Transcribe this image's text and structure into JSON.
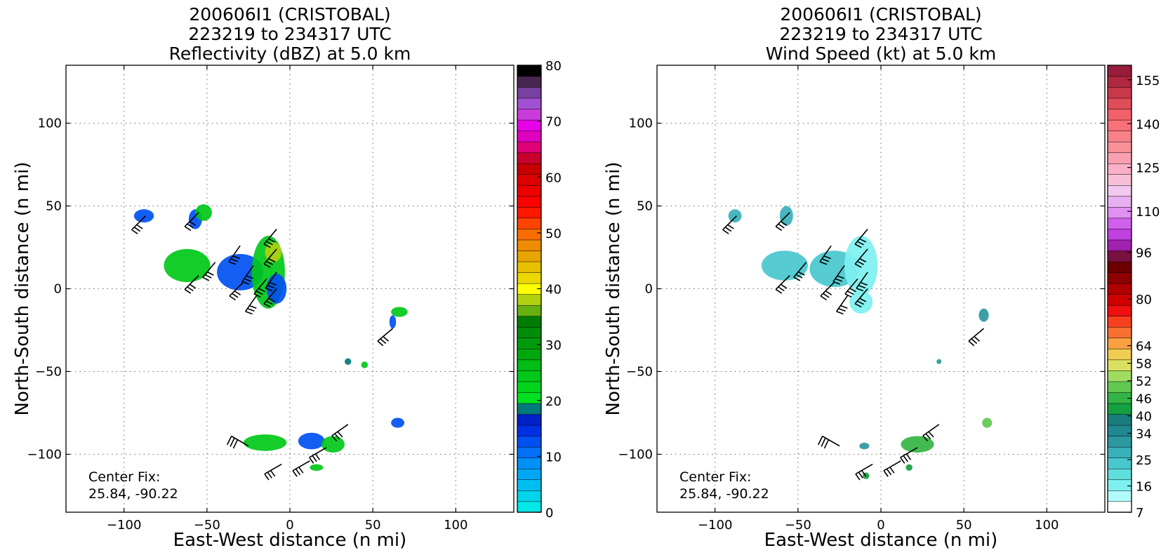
{
  "chart_data": [
    {
      "type": "heatmap",
      "title": [
        "200606I1 (CRISTOBAL)",
        "223219 to 234317 UTC",
        "Reflectivity (dBZ) at 5.0 km"
      ],
      "xlabel": "East-West distance (n mi)",
      "ylabel": "North-South distance (n mi)",
      "xlim": [
        -135,
        135
      ],
      "ylim": [
        -135,
        135
      ],
      "xticks": [
        -100,
        -50,
        0,
        50,
        100
      ],
      "xtick_labels": [
        "−100",
        "−50",
        "0",
        "50",
        "100"
      ],
      "yticks": [
        -100,
        -50,
        0,
        50,
        100
      ],
      "ytick_labels": [
        "−100",
        "−50",
        "0",
        "50",
        "100"
      ],
      "grid": true,
      "annotation": [
        "Center Fix:",
        "25.84, -90.22"
      ],
      "colorbar": {
        "min": 0,
        "max": 80,
        "ticks": [
          0,
          10,
          20,
          30,
          40,
          50,
          60,
          70,
          80
        ],
        "tick_labels": [
          "0",
          "10",
          "20",
          "30",
          "40",
          "50",
          "60",
          "70",
          "80"
        ],
        "colors": [
          "#00e8e8",
          "#00d4ea",
          "#00bff0",
          "#00a8f4",
          "#0090f6",
          "#0070f6",
          "#0050f2",
          "#0030e6",
          "#0020c8",
          "#007a7a",
          "#00e020",
          "#00d41c",
          "#00c818",
          "#00bc14",
          "#00a810",
          "#009a0c",
          "#008c08",
          "#007c04",
          "#66b010",
          "#b0d010",
          "#ffff00",
          "#ecd800",
          "#e8c000",
          "#e8a400",
          "#f08c00",
          "#f86c00",
          "#ff4400",
          "#ff1800",
          "#ff0000",
          "#ee0000",
          "#dc0000",
          "#c80000",
          "#c8002c",
          "#e00078",
          "#e000c0",
          "#e800e8",
          "#c83cdc",
          "#a050d0",
          "#7840a0",
          "#482850",
          "#000000"
        ]
      },
      "fields": [
        {
          "x": -62,
          "y": 14,
          "rx": 14,
          "ry": 10,
          "color": "#00c818"
        },
        {
          "x": -30,
          "y": 10,
          "rx": 14,
          "ry": 11,
          "color": "#0050f2"
        },
        {
          "x": -13,
          "y": 10,
          "rx": 10,
          "ry": 22,
          "color": "#00c818"
        },
        {
          "x": -10,
          "y": 22,
          "rx": 5,
          "ry": 6,
          "color": "#b0d010"
        },
        {
          "x": -8,
          "y": 0,
          "rx": 6,
          "ry": 9,
          "color": "#0050f2"
        },
        {
          "x": -57,
          "y": 42,
          "rx": 4,
          "ry": 6,
          "color": "#0050f2"
        },
        {
          "x": -52,
          "y": 46,
          "rx": 5,
          "ry": 5,
          "color": "#00c818"
        },
        {
          "x": -88,
          "y": 44,
          "rx": 6,
          "ry": 4,
          "color": "#0050f2"
        },
        {
          "x": 66,
          "y": -14,
          "rx": 5,
          "ry": 3,
          "color": "#00c818"
        },
        {
          "x": 62,
          "y": -20,
          "rx": 2,
          "ry": 4,
          "color": "#0050f2"
        },
        {
          "x": 65,
          "y": -81,
          "rx": 4,
          "ry": 3,
          "color": "#0050f2"
        },
        {
          "x": -15,
          "y": -93,
          "rx": 13,
          "ry": 5,
          "color": "#00c818"
        },
        {
          "x": 13,
          "y": -92,
          "rx": 8,
          "ry": 5,
          "color": "#0050f2"
        },
        {
          "x": 26,
          "y": -94,
          "rx": 7,
          "ry": 5,
          "color": "#00c818"
        },
        {
          "x": 16,
          "y": -108,
          "rx": 4,
          "ry": 2,
          "color": "#00c818"
        },
        {
          "x": 45,
          "y": -46,
          "rx": 2,
          "ry": 2,
          "color": "#00c818"
        },
        {
          "x": 35,
          "y": -44,
          "rx": 2,
          "ry": 2,
          "color": "#007a7a"
        }
      ]
    },
    {
      "type": "heatmap",
      "title": [
        "200606I1 (CRISTOBAL)",
        "223219 to 234317 UTC",
        "Wind Speed (kt) at 5.0 km"
      ],
      "xlabel": "East-West distance (n mi)",
      "ylabel": "North-South distance (n mi)",
      "xlim": [
        -135,
        135
      ],
      "ylim": [
        -135,
        135
      ],
      "xticks": [
        -100,
        -50,
        0,
        50,
        100
      ],
      "xtick_labels": [
        "−100",
        "−50",
        "0",
        "50",
        "100"
      ],
      "yticks": [
        -100,
        -50,
        0,
        50,
        100
      ],
      "ytick_labels": [
        "−100",
        "−50",
        "0",
        "50",
        "100"
      ],
      "grid": true,
      "annotation": [
        "Center Fix:",
        "25.84, -90.22"
      ],
      "colorbar": {
        "min": 7,
        "max": 160,
        "ticks": [
          7,
          16,
          25,
          34,
          40,
          46,
          52,
          58,
          64,
          80,
          96,
          110,
          125,
          140,
          155
        ],
        "tick_labels": [
          "7",
          "16",
          "25",
          "34",
          "40",
          "46",
          "52",
          "58",
          "64",
          "80",
          "96",
          "110",
          "125",
          "140",
          "155"
        ],
        "colors": [
          "#ffffff",
          "#b0fafa",
          "#7ef0f0",
          "#60dede",
          "#48c8ce",
          "#38b0b8",
          "#2c98a0",
          "#208890",
          "#1a7c7c",
          "#14a040",
          "#34b444",
          "#60c850",
          "#a0dc60",
          "#dce060",
          "#f0cc50",
          "#f8a040",
          "#f87030",
          "#f84020",
          "#f01010",
          "#d00000",
          "#b00000",
          "#8c0000",
          "#6c0000",
          "#781040",
          "#a020b0",
          "#c040e0",
          "#d060ec",
          "#e090f0",
          "#e8b0f0",
          "#f0c8f0",
          "#f8c0d8",
          "#fab0c8",
          "#f8a0b0",
          "#f89098",
          "#f88088",
          "#f87078",
          "#f06068",
          "#e04c58",
          "#c83848",
          "#b02840",
          "#981c3c"
        ]
      },
      "fields": [
        {
          "x": -58,
          "y": 14,
          "rx": 14,
          "ry": 9,
          "color": "#48c8ce"
        },
        {
          "x": -28,
          "y": 12,
          "rx": 15,
          "ry": 11,
          "color": "#48c8ce"
        },
        {
          "x": -12,
          "y": 14,
          "rx": 10,
          "ry": 18,
          "color": "#7ef0f0"
        },
        {
          "x": -12,
          "y": -8,
          "rx": 7,
          "ry": 7,
          "color": "#7ef0f0"
        },
        {
          "x": -57,
          "y": 44,
          "rx": 4,
          "ry": 6,
          "color": "#38b0b8"
        },
        {
          "x": -88,
          "y": 44,
          "rx": 4,
          "ry": 4,
          "color": "#38b0b8"
        },
        {
          "x": 62,
          "y": -16,
          "rx": 3,
          "ry": 4,
          "color": "#2c98a0"
        },
        {
          "x": 64,
          "y": -81,
          "rx": 3,
          "ry": 3,
          "color": "#60c850"
        },
        {
          "x": 22,
          "y": -94,
          "rx": 10,
          "ry": 5,
          "color": "#34b444"
        },
        {
          "x": -10,
          "y": -95,
          "rx": 3,
          "ry": 2,
          "color": "#2c98a0"
        },
        {
          "x": -9,
          "y": -113,
          "rx": 2,
          "ry": 2,
          "color": "#14a040"
        },
        {
          "x": 17,
          "y": -108,
          "rx": 2,
          "ry": 2,
          "color": "#14a040"
        },
        {
          "x": 35,
          "y": -44,
          "rx": 1.5,
          "ry": 1.5,
          "color": "#2c98a0"
        }
      ]
    }
  ],
  "barbs": [
    [
      -87,
      44,
      225
    ],
    [
      -55,
      46,
      225
    ],
    [
      -8,
      36,
      220
    ],
    [
      -30,
      26,
      215
    ],
    [
      -45,
      16,
      220
    ],
    [
      -55,
      8,
      225
    ],
    [
      -22,
      14,
      215
    ],
    [
      -8,
      24,
      220
    ],
    [
      -14,
      6,
      220
    ],
    [
      -28,
      4,
      225
    ],
    [
      -20,
      -4,
      215
    ],
    [
      -8,
      0,
      220
    ],
    [
      -8,
      10,
      215
    ],
    [
      62,
      -24,
      230
    ],
    [
      -25,
      -95,
      300
    ],
    [
      35,
      -82,
      235
    ],
    [
      12,
      -104,
      240
    ],
    [
      -5,
      -106,
      240
    ],
    [
      22,
      -96,
      240
    ]
  ]
}
